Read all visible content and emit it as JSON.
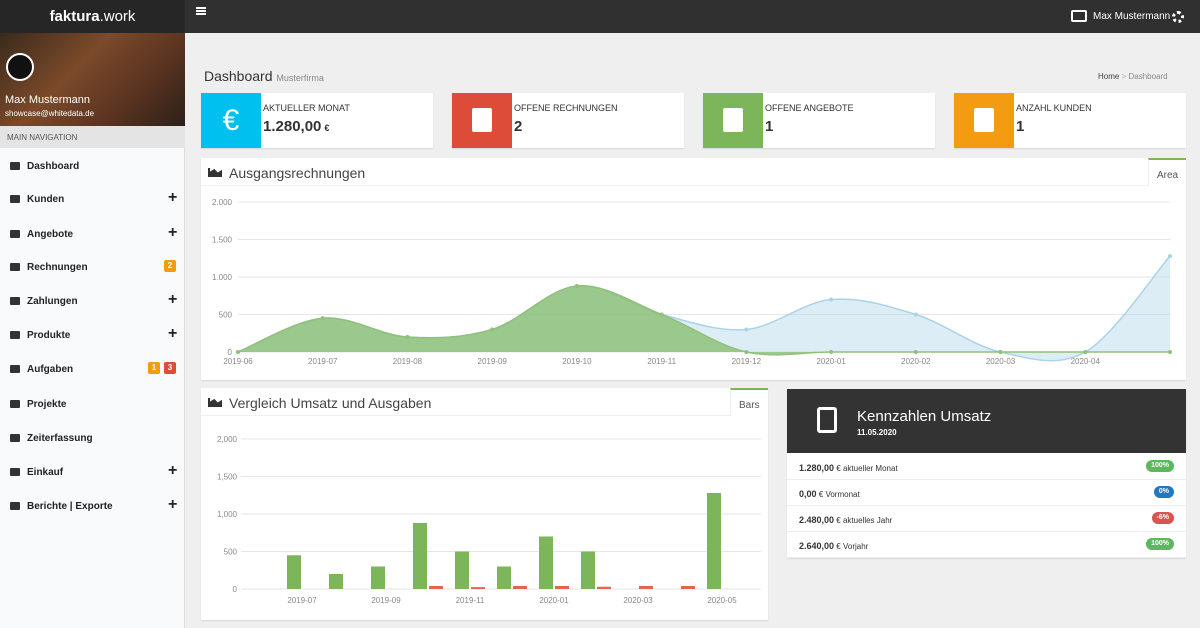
{
  "topbar": {
    "brand_bold": "faktura",
    "brand_rest": ".work",
    "user": "Max Mustermann"
  },
  "sidebar": {
    "user_name": "Max Mustermann",
    "user_email": "showcase@whitedata.de",
    "nav_header": "MAIN NAVIGATION",
    "items": [
      {
        "label": "Dashboard"
      },
      {
        "label": "Kunden",
        "expand": "+"
      },
      {
        "label": "Angebote",
        "expand": "+"
      },
      {
        "label": "Rechnungen",
        "badges": [
          {
            "text": 2,
            "color": "#f39c12"
          }
        ]
      },
      {
        "label": "Zahlungen",
        "expand": "+"
      },
      {
        "label": "Produkte",
        "expand": "+"
      },
      {
        "label": "Aufgaben",
        "badges": [
          {
            "text": 1,
            "color": "#f39c12"
          },
          {
            "text": 3,
            "color": "#dd4b39"
          }
        ]
      },
      {
        "label": "Projekte"
      },
      {
        "label": "Zeiterfassung"
      },
      {
        "label": "Einkauf",
        "expand": "+"
      },
      {
        "label": "Berichte | Exporte",
        "expand": "+"
      }
    ]
  },
  "header": {
    "title": "Dashboard",
    "subtitle": "Musterfirma",
    "breadcrumb": [
      "Home",
      "Dashboard"
    ]
  },
  "info_boxes": [
    {
      "icon_text": "€",
      "color": "#00c0ef",
      "label": "AKTUELLER MONAT",
      "value": "1.280,00",
      "unit": "€"
    },
    {
      "color": "#dd4b39",
      "label": "OFFENE RECHNUNGEN",
      "value": 2
    },
    {
      "color": "#7cb55a",
      "label": "OFFENE ANGEBOTE",
      "value": 1
    },
    {
      "color": "#f39c12",
      "label": "ANZAHL KUNDEN",
      "value": 1
    }
  ],
  "chart_data": [
    {
      "type": "area",
      "title": "Ausgangsrechnungen",
      "tab": "Area",
      "categories": [
        "2019-06",
        "2019-07",
        "2019-08",
        "2019-09",
        "2019-10",
        "2019-11",
        "2019-12",
        "2020-01",
        "2020-02",
        "2020-03",
        "2020-04",
        null
      ],
      "series": [
        {
          "color": "#a9d3e6",
          "values": [
            0,
            450,
            200,
            300,
            880,
            500,
            300,
            700,
            500,
            0,
            0,
            1280
          ]
        },
        {
          "color": "#8fc17a",
          "values": [
            0,
            450,
            200,
            300,
            880,
            500,
            0,
            0,
            0,
            0,
            0,
            0
          ]
        }
      ],
      "ylim": [
        0,
        2000
      ],
      "yticks": [
        0,
        500,
        {
          "value": 1000,
          "label": "1.000"
        },
        {
          "value": 1500,
          "label": "1.500"
        },
        {
          "value": 2000,
          "label": "2.000"
        }
      ],
      "grid": true
    },
    {
      "type": "bar",
      "title": "Vergleich Umsatz und Ausgaben",
      "tab": "Bars",
      "categories": [
        "2019-07",
        null,
        "2019-09",
        null,
        "2019-11",
        null,
        "2020-01",
        null,
        "2020-03",
        null,
        "2020-05"
      ],
      "series": [
        {
          "color": "#7cb55a",
          "values": [
            450,
            200,
            300,
            880,
            500,
            300,
            700,
            500,
            0,
            0,
            1280
          ]
        },
        {
          "color": "#e8644f",
          "values": [
            0,
            0,
            0,
            40,
            25,
            40,
            40,
            30,
            40,
            40,
            0
          ]
        }
      ],
      "ylim": [
        0,
        2000
      ],
      "yticks": [
        0,
        500,
        {
          "value": 1000,
          "label": "1,000"
        },
        {
          "value": 1500,
          "label": "1,500"
        },
        {
          "value": 2000,
          "label": "2,000"
        }
      ],
      "grid": true
    }
  ],
  "kpi": {
    "title": "Kennzahlen Umsatz",
    "date": "11.05.2020",
    "rows": [
      {
        "amount": "1.280,00",
        "unit": "€",
        "label": "aktueller Monat",
        "badge": "100%",
        "color": "#5cb85c"
      },
      {
        "amount": "0,00",
        "unit": "€",
        "label": "Vormonat",
        "badge": "0%",
        "color": "#1f78c1"
      },
      {
        "amount": "2.480,00",
        "unit": "€",
        "label": "aktuelles Jahr",
        "badge": "-6%",
        "color": "#d9534f"
      },
      {
        "amount": "2.640,00",
        "unit": "€",
        "label": "Vorjahr",
        "badge": "100%",
        "color": "#5cb85c"
      }
    ]
  }
}
